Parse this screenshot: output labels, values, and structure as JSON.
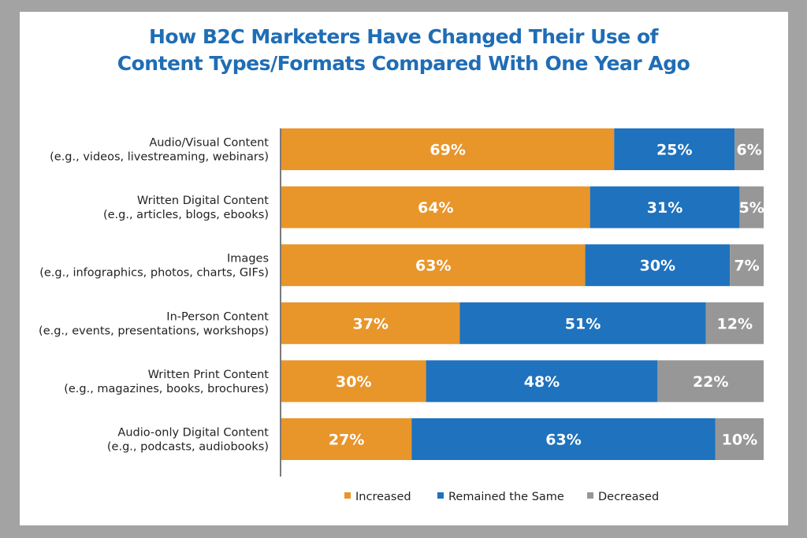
{
  "chart_data": {
    "type": "bar",
    "orientation": "horizontal",
    "stacked": true,
    "title": "How B2C Marketers Have Changed Their Use of Content Types/Formats Compared With One Year Ago",
    "title_lines": [
      "How B2C Marketers Have Changed Their Use of",
      "Content Types/Formats Compared With One Year Ago"
    ],
    "categories": [
      [
        "Audio/Visual Content",
        "(e.g., videos, livestreaming, webinars)"
      ],
      [
        "Written Digital Content",
        "(e.g., articles, blogs, ebooks)"
      ],
      [
        "Images",
        "(e.g., infographics, photos, charts, GIFs)"
      ],
      [
        "In-Person Content",
        "(e.g., events, presentations, workshops)"
      ],
      [
        "Written Print Content",
        "(e.g., magazines, books, brochures)"
      ],
      [
        "Audio-only Digital Content",
        "(e.g., podcasts, audiobooks)"
      ]
    ],
    "series": [
      {
        "name": "Increased",
        "color": "#e8952a",
        "values": [
          69,
          64,
          63,
          37,
          30,
          27
        ]
      },
      {
        "name": "Remained the Same",
        "color": "#1f72bd",
        "values": [
          25,
          31,
          30,
          51,
          48,
          63
        ]
      },
      {
        "name": "Decreased",
        "color": "#979797",
        "values": [
          6,
          5,
          7,
          12,
          22,
          10
        ]
      }
    ],
    "value_suffix": "%",
    "legend_position": "bottom",
    "grid": false
  }
}
